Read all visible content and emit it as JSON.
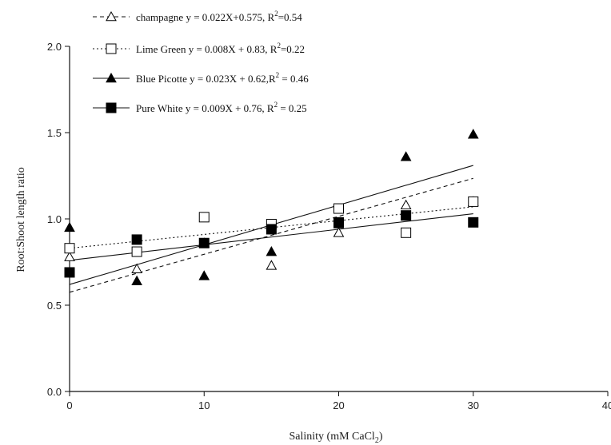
{
  "chart_data": {
    "type": "scatter",
    "title": "",
    "xlabel": "Salinity (mM CaCl",
    "xlabel_sub": "2",
    "xlabel_end": ")",
    "ylabel": "Root:Shoot length ratio",
    "xlim": [
      0,
      40
    ],
    "ylim": [
      0.0,
      2.0
    ],
    "x_ticks": [
      "0",
      "10",
      "20",
      "30",
      "40"
    ],
    "y_ticks": [
      "0.0",
      "0.5",
      "1.0",
      "1.5",
      "2.0"
    ],
    "x_tick_values": [
      0,
      10,
      20,
      30,
      40
    ],
    "y_tick_values": [
      0.0,
      0.5,
      1.0,
      1.5,
      2.0
    ],
    "grid": false,
    "legend_position": "top-left",
    "series": [
      {
        "name": "champagne",
        "equation": "y = 0.022X+0.575, R",
        "r2": "=0.54",
        "marker": "triangle-open",
        "line_style": "dashed",
        "fit": [
          0.022,
          0.575
        ],
        "x": [
          0,
          5,
          10,
          15,
          20,
          25,
          30
        ],
        "y": [
          0.78,
          0.71,
          0.86,
          0.73,
          0.92,
          1.08,
          1.1
        ]
      },
      {
        "name": "Lime Green",
        "equation": "y = 0.008X + 0.83, R",
        "r2": "=0.22",
        "marker": "square-open",
        "line_style": "dotted",
        "fit": [
          0.008,
          0.83
        ],
        "x": [
          0,
          5,
          10,
          15,
          20,
          25,
          30
        ],
        "y": [
          0.83,
          0.81,
          1.01,
          0.97,
          1.06,
          0.92,
          1.1
        ]
      },
      {
        "name": "Blue Picotte",
        "equation": "y = 0.023X + 0.62,R",
        "r2": " = 0.46",
        "marker": "triangle-filled",
        "line_style": "solid",
        "fit": [
          0.023,
          0.62
        ],
        "x": [
          0,
          5,
          10,
          15,
          20,
          25,
          30
        ],
        "y": [
          0.95,
          0.64,
          0.67,
          0.81,
          0.97,
          1.36,
          1.49
        ]
      },
      {
        "name": "Pure White",
        "equation": "y = 0.009X + 0.76, R",
        "r2": " = 0.25",
        "marker": "square-filled",
        "line_style": "solid",
        "fit": [
          0.009,
          0.76
        ],
        "x": [
          0,
          5,
          10,
          15,
          20,
          25,
          30
        ],
        "y": [
          0.69,
          0.88,
          0.86,
          0.94,
          0.98,
          1.02,
          0.98
        ]
      }
    ]
  }
}
